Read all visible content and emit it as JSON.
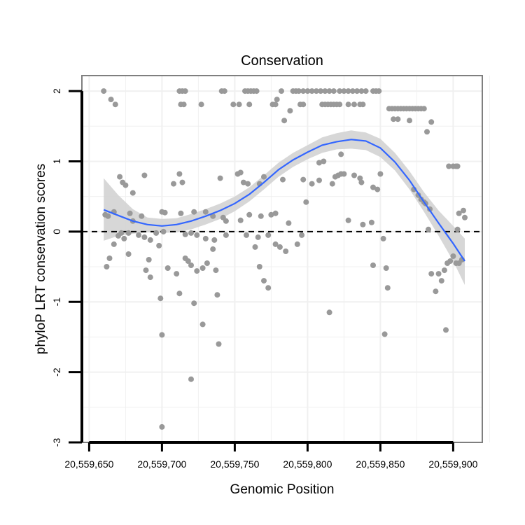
{
  "chart_data": {
    "type": "scatter",
    "title": "Conservation",
    "xlabel": "Genomic Position",
    "ylabel": "phyloP LRT conservation scores",
    "xlim": [
      20559645,
      20559920
    ],
    "ylim": [
      -3,
      2.22
    ],
    "x_ticks": [
      20559650,
      20559700,
      20559750,
      20559800,
      20559850,
      20559900
    ],
    "x_tick_labels": [
      "20,559,650",
      "20,559,700",
      "20,559,750",
      "20,559,800",
      "20,559,850",
      "20,559,900"
    ],
    "y_ticks": [
      -3,
      -2,
      -1,
      0,
      1,
      2
    ],
    "y_tick_labels": [
      "-3",
      "-2",
      "-1",
      "0",
      "1",
      "2"
    ],
    "reference_line": {
      "y": 0,
      "style": "dashed"
    },
    "colors": {
      "points": "#999999",
      "smooth": "#3366ff",
      "band": "#d3d3d3",
      "border": "#7f7f7f",
      "grid": "#f0f0f0"
    },
    "points": [
      [
        20559660,
        2.0
      ],
      [
        20559665,
        1.88
      ],
      [
        20559668,
        1.81
      ],
      [
        20559712,
        2.0
      ],
      [
        20559714,
        2.0
      ],
      [
        20559716,
        2.0
      ],
      [
        20559713,
        1.81
      ],
      [
        20559715,
        1.81
      ],
      [
        20559727,
        1.81
      ],
      [
        20559741,
        2.0
      ],
      [
        20559743,
        2.0
      ],
      [
        20559757,
        2.0
      ],
      [
        20559759,
        2.0
      ],
      [
        20559761,
        2.0
      ],
      [
        20559763,
        2.0
      ],
      [
        20559765,
        2.0
      ],
      [
        20559753,
        1.81
      ],
      [
        20559749,
        1.81
      ],
      [
        20559776,
        1.81
      ],
      [
        20559778,
        1.81
      ],
      [
        20559760,
        1.81
      ],
      [
        20559782,
        2.0
      ],
      [
        20559779,
        1.88
      ],
      [
        20559790,
        2.0
      ],
      [
        20559792,
        2.0
      ],
      [
        20559794,
        2.0
      ],
      [
        20559797,
        2.0
      ],
      [
        20559800,
        2.0
      ],
      [
        20559803,
        2.0
      ],
      [
        20559806,
        2.0
      ],
      [
        20559809,
        2.0
      ],
      [
        20559812,
        2.0
      ],
      [
        20559815,
        2.0
      ],
      [
        20559818,
        2.0
      ],
      [
        20559822,
        2.0
      ],
      [
        20559825,
        2.0
      ],
      [
        20559828,
        2.0
      ],
      [
        20559831,
        2.0
      ],
      [
        20559834,
        2.0
      ],
      [
        20559837,
        2.0
      ],
      [
        20559840,
        2.0
      ],
      [
        20559845,
        2.0
      ],
      [
        20559847,
        2.0
      ],
      [
        20559849,
        2.0
      ],
      [
        20559810,
        1.81
      ],
      [
        20559812,
        1.81
      ],
      [
        20559814,
        1.81
      ],
      [
        20559816,
        1.81
      ],
      [
        20559818,
        1.81
      ],
      [
        20559820,
        1.81
      ],
      [
        20559822,
        1.81
      ],
      [
        20559828,
        1.81
      ],
      [
        20559832,
        1.81
      ],
      [
        20559836,
        1.81
      ],
      [
        20559838,
        1.81
      ],
      [
        20559795,
        1.81
      ],
      [
        20559797,
        1.81
      ],
      [
        20559788,
        1.72
      ],
      [
        20559784,
        1.58
      ],
      [
        20559856,
        1.75
      ],
      [
        20559858,
        1.75
      ],
      [
        20559860,
        1.75
      ],
      [
        20559862,
        1.75
      ],
      [
        20559864,
        1.75
      ],
      [
        20559866,
        1.75
      ],
      [
        20559868,
        1.75
      ],
      [
        20559870,
        1.75
      ],
      [
        20559872,
        1.75
      ],
      [
        20559874,
        1.75
      ],
      [
        20559876,
        1.75
      ],
      [
        20559878,
        1.75
      ],
      [
        20559880,
        1.75
      ],
      [
        20559859,
        1.6
      ],
      [
        20559862,
        1.6
      ],
      [
        20559870,
        1.58
      ],
      [
        20559885,
        1.56
      ],
      [
        20559882,
        1.42
      ],
      [
        20559823,
        1.1
      ],
      [
        20559811,
        1.0
      ],
      [
        20559808,
        0.98
      ],
      [
        20559897,
        0.93
      ],
      [
        20559900,
        0.93
      ],
      [
        20559902,
        0.93
      ],
      [
        20559903,
        0.93
      ],
      [
        20559671,
        0.78
      ],
      [
        20559673,
        0.7
      ],
      [
        20559675,
        0.66
      ],
      [
        20559680,
        0.55
      ],
      [
        20559688,
        0.8
      ],
      [
        20559712,
        0.82
      ],
      [
        20559708,
        0.68
      ],
      [
        20559714,
        0.7
      ],
      [
        20559740,
        0.76
      ],
      [
        20559752,
        0.82
      ],
      [
        20559754,
        0.84
      ],
      [
        20559756,
        0.7
      ],
      [
        20559759,
        0.68
      ],
      [
        20559767,
        0.68
      ],
      [
        20559770,
        0.78
      ],
      [
        20559783,
        0.74
      ],
      [
        20559797,
        0.74
      ],
      [
        20559808,
        0.73
      ],
      [
        20559803,
        0.68
      ],
      [
        20559817,
        0.68
      ],
      [
        20559819,
        0.78
      ],
      [
        20559821,
        0.8
      ],
      [
        20559823,
        0.82
      ],
      [
        20559825,
        0.82
      ],
      [
        20559832,
        0.8
      ],
      [
        20559836,
        0.76
      ],
      [
        20559837,
        0.7
      ],
      [
        20559845,
        0.63
      ],
      [
        20559850,
        0.82
      ],
      [
        20559848,
        0.6
      ],
      [
        20559873,
        0.6
      ],
      [
        20559876,
        0.52
      ],
      [
        20559878,
        0.46
      ],
      [
        20559880,
        0.42
      ],
      [
        20559881,
        0.4
      ],
      [
        20559884,
        0.32
      ],
      [
        20559661,
        0.24
      ],
      [
        20559663,
        0.22
      ],
      [
        20559667,
        0.28
      ],
      [
        20559678,
        0.26
      ],
      [
        20559680,
        0.15
      ],
      [
        20559686,
        0.22
      ],
      [
        20559700,
        0.28
      ],
      [
        20559702,
        0.27
      ],
      [
        20559713,
        0.26
      ],
      [
        20559722,
        0.28
      ],
      [
        20559730,
        0.28
      ],
      [
        20559735,
        0.22
      ],
      [
        20559742,
        0.2
      ],
      [
        20559744,
        0.15
      ],
      [
        20559754,
        0.16
      ],
      [
        20559760,
        0.24
      ],
      [
        20559768,
        0.22
      ],
      [
        20559775,
        0.24
      ],
      [
        20559778,
        0.26
      ],
      [
        20559787,
        0.12
      ],
      [
        20559799,
        0.42
      ],
      [
        20559828,
        0.16
      ],
      [
        20559838,
        0.1
      ],
      [
        20559844,
        0.13
      ],
      [
        20559883,
        0.03
      ],
      [
        20559903,
        0.03
      ],
      [
        20559904,
        0.26
      ],
      [
        20559907,
        0.3
      ],
      [
        20559908,
        0.2
      ],
      [
        20559670,
        -0.06
      ],
      [
        20559672,
        -0.02
      ],
      [
        20559674,
        -0.1
      ],
      [
        20559677,
        -0.02
      ],
      [
        20559684,
        -0.05
      ],
      [
        20559688,
        -0.08
      ],
      [
        20559692,
        -0.12
      ],
      [
        20559696,
        -0.02
      ],
      [
        20559701,
        0.0
      ],
      [
        20559716,
        -0.04
      ],
      [
        20559720,
        -0.02
      ],
      [
        20559724,
        -0.05
      ],
      [
        20559730,
        -0.1
      ],
      [
        20559736,
        -0.12
      ],
      [
        20559744,
        -0.05
      ],
      [
        20559758,
        -0.05
      ],
      [
        20559766,
        -0.08
      ],
      [
        20559773,
        -0.05
      ],
      [
        20559778,
        -0.18
      ],
      [
        20559781,
        -0.22
      ],
      [
        20559785,
        -0.28
      ],
      [
        20559793,
        -0.18
      ],
      [
        20559796,
        -0.05
      ],
      [
        20559667,
        -0.18
      ],
      [
        20559662,
        -0.5
      ],
      [
        20559664,
        -0.38
      ],
      [
        20559677,
        -0.32
      ],
      [
        20559689,
        -0.55
      ],
      [
        20559691,
        -0.4
      ],
      [
        20559698,
        -0.2
      ],
      [
        20559704,
        -0.52
      ],
      [
        20559710,
        -0.6
      ],
      [
        20559716,
        -0.38
      ],
      [
        20559718,
        -0.42
      ],
      [
        20559720,
        -0.48
      ],
      [
        20559724,
        -0.56
      ],
      [
        20559728,
        -0.52
      ],
      [
        20559731,
        -0.45
      ],
      [
        20559735,
        -0.25
      ],
      [
        20559737,
        -0.55
      ],
      [
        20559764,
        -0.22
      ],
      [
        20559767,
        -0.5
      ],
      [
        20559770,
        -0.7
      ],
      [
        20559773,
        -0.8
      ],
      [
        20559845,
        -0.48
      ],
      [
        20559852,
        -0.1
      ],
      [
        20559854,
        -0.52
      ],
      [
        20559855,
        -0.8
      ],
      [
        20559853,
        -1.46
      ],
      [
        20559885,
        -0.6
      ],
      [
        20559888,
        -0.85
      ],
      [
        20559890,
        -0.6
      ],
      [
        20559892,
        -0.7
      ],
      [
        20559894,
        -0.55
      ],
      [
        20559896,
        -0.45
      ],
      [
        20559898,
        -0.42
      ],
      [
        20559900,
        -0.35
      ],
      [
        20559902,
        -0.45
      ],
      [
        20559904,
        -0.45
      ],
      [
        20559906,
        -0.4
      ],
      [
        20559895,
        -1.4
      ],
      [
        20559692,
        -0.65
      ],
      [
        20559699,
        -0.95
      ],
      [
        20559700,
        -1.47
      ],
      [
        20559712,
        -0.88
      ],
      [
        20559722,
        -1.02
      ],
      [
        20559728,
        -1.32
      ],
      [
        20559738,
        -0.9
      ],
      [
        20559739,
        -1.6
      ],
      [
        20559815,
        -1.15
      ],
      [
        20559720,
        -2.1
      ],
      [
        20559700,
        -2.78
      ]
    ],
    "smooth": {
      "x": [
        20559660,
        20559670,
        20559680,
        20559690,
        20559700,
        20559710,
        20559720,
        20559730,
        20559740,
        20559750,
        20559760,
        20559770,
        20559780,
        20559790,
        20559800,
        20559810,
        20559820,
        20559830,
        20559840,
        20559850,
        20559860,
        20559870,
        20559880,
        20559890,
        20559900,
        20559908
      ],
      "y": [
        0.31,
        0.23,
        0.15,
        0.1,
        0.08,
        0.1,
        0.15,
        0.22,
        0.3,
        0.4,
        0.53,
        0.7,
        0.88,
        1.02,
        1.13,
        1.23,
        1.28,
        1.31,
        1.29,
        1.19,
        0.99,
        0.73,
        0.42,
        0.12,
        -0.17,
        -0.42
      ],
      "lower": [
        -0.13,
        -0.06,
        -0.03,
        -0.01,
        -0.02,
        -0.01,
        0.03,
        0.1,
        0.18,
        0.29,
        0.43,
        0.6,
        0.78,
        0.92,
        1.03,
        1.12,
        1.17,
        1.18,
        1.16,
        1.06,
        0.87,
        0.6,
        0.28,
        -0.06,
        -0.42,
        -0.76
      ],
      "upper": [
        0.76,
        0.52,
        0.32,
        0.2,
        0.18,
        0.19,
        0.25,
        0.32,
        0.4,
        0.5,
        0.63,
        0.8,
        0.98,
        1.12,
        1.23,
        1.34,
        1.4,
        1.44,
        1.41,
        1.32,
        1.12,
        0.86,
        0.56,
        0.3,
        0.08,
        -0.1
      ]
    }
  }
}
